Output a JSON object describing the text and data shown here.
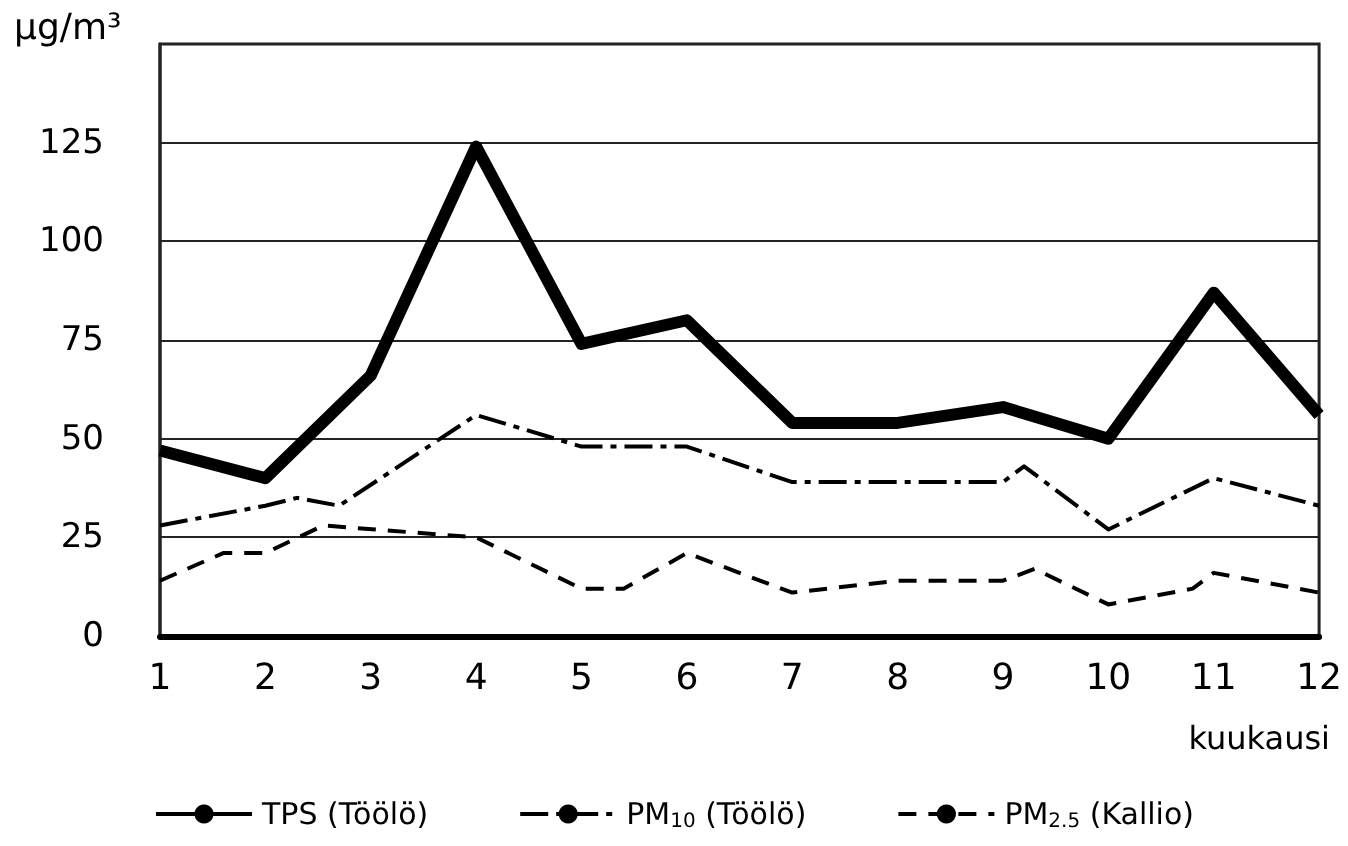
{
  "chart_data": {
    "type": "line",
    "ylabel": "μg/m³",
    "xlabel": "kuukausi",
    "xlim": [
      1,
      12
    ],
    "xticks": [
      1,
      2,
      3,
      4,
      5,
      6,
      7,
      8,
      9,
      10,
      11,
      12
    ],
    "ylim": [
      0,
      150
    ],
    "yticks": [
      0,
      25,
      50,
      75,
      100,
      125
    ],
    "grid": "y",
    "legend": "bottom",
    "marker": "none",
    "series": [
      {
        "name": "TPS (Töölö)",
        "color": "#000000",
        "line_style": "solid",
        "x": [
          1,
          2,
          3,
          4,
          5,
          6,
          7,
          8,
          9,
          10,
          11,
          12
        ],
        "values": [
          47,
          40,
          66,
          124,
          74,
          80,
          54,
          54,
          58,
          50,
          87,
          56
        ]
      },
      {
        "name": "PM$_{10}$ (Töölö)",
        "color": "#000000",
        "line_style": "dashdot",
        "x": [
          1,
          2,
          2.3,
          2.7,
          4,
          5,
          6,
          7,
          8,
          9,
          9.2,
          10,
          11,
          12
        ],
        "values": [
          28,
          33,
          35,
          33,
          56,
          48,
          48,
          39,
          39,
          39,
          43,
          27,
          40,
          33
        ]
      },
      {
        "name": "PM$_{2.5}$ (Kallio)",
        "color": "#000000",
        "line_style": "dashed",
        "x": [
          1,
          1.6,
          2,
          2.55,
          4,
          5,
          5.4,
          6,
          7,
          8,
          9,
          9.3,
          10,
          10.8,
          11,
          12
        ],
        "values": [
          14,
          21,
          21,
          28,
          25,
          12,
          12,
          21,
          11,
          14,
          14,
          17,
          8,
          12,
          16,
          11
        ]
      }
    ]
  }
}
